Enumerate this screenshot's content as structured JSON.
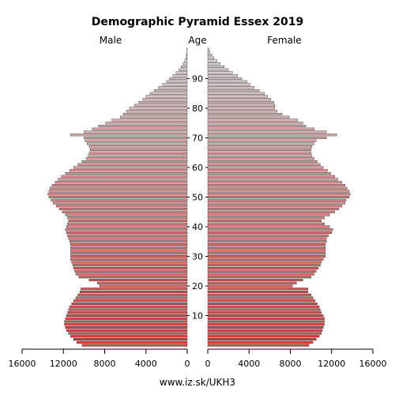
{
  "chart_data": {
    "type": "bar",
    "orientation": "horizontal-pyramid",
    "title": "Demographic Pyramid Essex 2019",
    "left_label": "Male",
    "center_label": "Age",
    "right_label": "Female",
    "footer": "www.iz.sk/UKH3",
    "age_ticks": [
      10,
      20,
      30,
      40,
      50,
      60,
      70,
      80,
      90
    ],
    "x_ticks": [
      16000,
      12000,
      8000,
      4000,
      0
    ],
    "x_tick_labels": [
      "16000",
      "12000",
      "8000",
      "4000",
      "0"
    ],
    "xlim": [
      0,
      16000
    ],
    "ages": [
      0,
      1,
      2,
      3,
      4,
      5,
      6,
      7,
      8,
      9,
      10,
      11,
      12,
      13,
      14,
      15,
      16,
      17,
      18,
      19,
      20,
      21,
      22,
      23,
      24,
      25,
      26,
      27,
      28,
      29,
      30,
      31,
      32,
      33,
      34,
      35,
      36,
      37,
      38,
      39,
      40,
      41,
      42,
      43,
      44,
      45,
      46,
      47,
      48,
      49,
      50,
      51,
      52,
      53,
      54,
      55,
      56,
      57,
      58,
      59,
      60,
      61,
      62,
      63,
      64,
      65,
      66,
      67,
      68,
      69,
      70,
      71,
      72,
      73,
      74,
      75,
      76,
      77,
      78,
      79,
      80,
      81,
      82,
      83,
      84,
      85,
      86,
      87,
      88,
      89,
      90,
      91,
      92,
      93,
      94,
      95,
      96,
      97,
      98,
      99,
      100
    ],
    "series": [
      {
        "name": "Male",
        "values": [
          10200,
          10700,
          11000,
          11300,
          11500,
          11700,
          11800,
          11900,
          11900,
          11800,
          11700,
          11600,
          11500,
          11400,
          11200,
          11000,
          10800,
          10600,
          10400,
          10300,
          8500,
          8700,
          9500,
          10500,
          10800,
          10900,
          11000,
          11100,
          11200,
          11300,
          11300,
          11300,
          11300,
          11300,
          11300,
          11400,
          11500,
          11600,
          11700,
          11800,
          11700,
          11600,
          11500,
          11600,
          11800,
          12100,
          12400,
          12700,
          13000,
          13200,
          13400,
          13500,
          13400,
          13300,
          13100,
          12800,
          12500,
          12200,
          11800,
          11400,
          11000,
          10600,
          10200,
          9800,
          9600,
          9500,
          9400,
          9500,
          9700,
          9900,
          10000,
          11300,
          10000,
          9200,
          8600,
          7900,
          7300,
          6500,
          6200,
          5900,
          5600,
          5100,
          4700,
          4300,
          4000,
          3600,
          3200,
          2800,
          2400,
          2000,
          1700,
          1400,
          1100,
          800,
          600,
          400,
          250,
          150,
          80,
          40,
          20
        ]
      },
      {
        "name": "Female",
        "values": [
          9800,
          10200,
          10500,
          10800,
          11000,
          11100,
          11200,
          11300,
          11300,
          11300,
          11200,
          11000,
          10900,
          10800,
          10600,
          10400,
          10200,
          10000,
          9700,
          9700,
          8200,
          8600,
          9200,
          10000,
          10300,
          10500,
          10700,
          10900,
          11000,
          11200,
          11400,
          11400,
          11400,
          11400,
          11400,
          11500,
          11500,
          11700,
          12000,
          12100,
          11800,
          11300,
          11000,
          11300,
          11800,
          12300,
          12700,
          13000,
          13300,
          13400,
          13700,
          13800,
          13700,
          13500,
          13300,
          13000,
          12600,
          12300,
          11900,
          11600,
          11200,
          10900,
          10600,
          10300,
          10100,
          10000,
          10000,
          10100,
          10300,
          10500,
          11500,
          12500,
          11500,
          10300,
          9500,
          9200,
          8700,
          7900,
          7200,
          6700,
          6500,
          6500,
          6400,
          6100,
          5800,
          5500,
          5000,
          4500,
          4100,
          3800,
          3300,
          2900,
          2400,
          2000,
          1600,
          1200,
          900,
          600,
          400,
          200,
          100
        ]
      }
    ]
  }
}
